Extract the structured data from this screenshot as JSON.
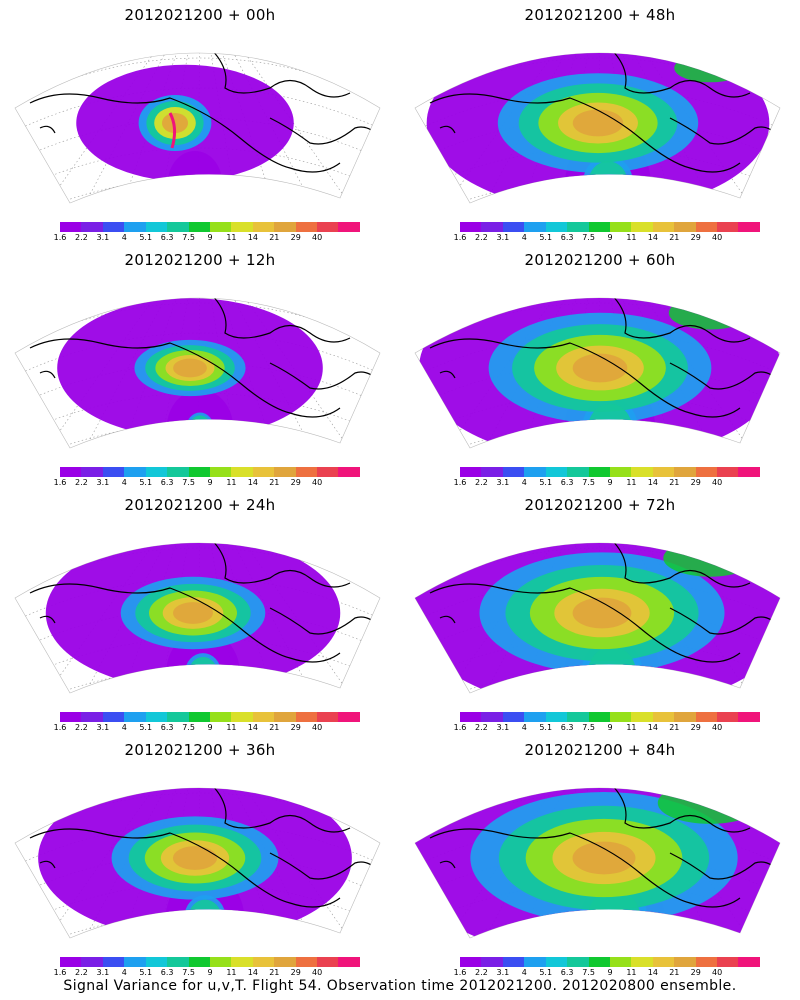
{
  "panels": [
    {
      "title": "2012021200 + 00h",
      "intensity": 0.0
    },
    {
      "title": "2012021200 + 48h",
      "intensity": 0.65
    },
    {
      "title": "2012021200 + 12h",
      "intensity": 0.25
    },
    {
      "title": "2012021200 + 60h",
      "intensity": 0.75
    },
    {
      "title": "2012021200 + 24h",
      "intensity": 0.4
    },
    {
      "title": "2012021200 + 72h",
      "intensity": 0.85
    },
    {
      "title": "2012021200 + 36h",
      "intensity": 0.5
    },
    {
      "title": "2012021200 + 84h",
      "intensity": 0.95
    }
  ],
  "colorbar": {
    "colors": [
      "#9a00e6",
      "#7a1fe6",
      "#3b4ef2",
      "#1ea0f0",
      "#12c7d8",
      "#14c89a",
      "#10c830",
      "#96e01a",
      "#d9e02a",
      "#e8c23a",
      "#e0a53c",
      "#ee7040",
      "#ea4150",
      "#f0147a"
    ],
    "labels": [
      "1.6",
      "2.2",
      "3.1",
      "4",
      "5.1",
      "6.3",
      "7.5",
      "9",
      "11",
      "14",
      "21",
      "29",
      "40"
    ]
  },
  "caption": "Signal Variance for u,v,T. Flight 54. Observation time 2012021200. 2012020800 ensemble."
}
